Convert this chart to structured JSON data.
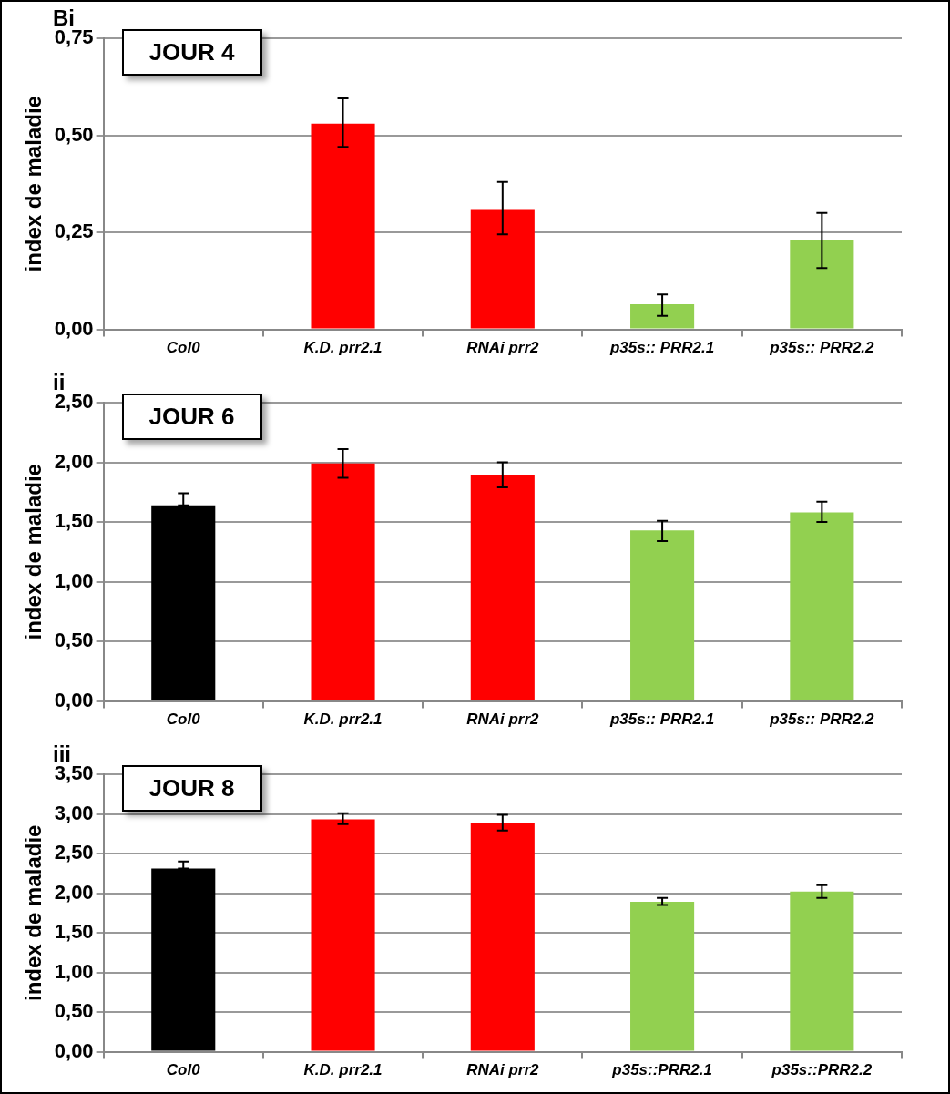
{
  "chart_data": [
    {
      "type": "bar",
      "title": "JOUR 4",
      "ylabel": "index de maladie",
      "annotations": [
        "Bi"
      ],
      "categories": [
        "Col0",
        "K.D. prr2.1",
        "RNAi prr2",
        "p35s:: PRR2.1",
        "p35s:: PRR2.2"
      ],
      "values": [
        0,
        0.53,
        0.31,
        0.065,
        0.23
      ],
      "colors": [
        "#000000",
        "#ff0000",
        "#ff0000",
        "#92d050",
        "#92d050"
      ],
      "errors": [
        null,
        [
          0.47,
          0.595
        ],
        [
          0.245,
          0.38
        ],
        [
          0.035,
          0.09
        ],
        [
          0.158,
          0.3
        ]
      ],
      "ylim": [
        0,
        0.75
      ],
      "yticks": [
        {
          "value": 0,
          "label": "0,00"
        },
        {
          "value": 0.25,
          "label": "0,25"
        },
        {
          "value": 0.5,
          "label": "0,50"
        },
        {
          "value": 0.75,
          "label": "0,75"
        }
      ],
      "grid": "y",
      "legend": false
    },
    {
      "type": "bar",
      "title": "JOUR 6",
      "ylabel": "index de maladie",
      "annotations": [
        "ii"
      ],
      "categories": [
        "Col0",
        "K.D. prr2.1",
        "RNAi prr2",
        "p35s:: PRR2.1",
        "p35s:: PRR2.2"
      ],
      "values": [
        1.64,
        1.99,
        1.89,
        1.43,
        1.58
      ],
      "colors": [
        "#000000",
        "#ff0000",
        "#ff0000",
        "#92d050",
        "#92d050"
      ],
      "errors": [
        [
          1.64,
          1.74
        ],
        [
          1.87,
          2.11
        ],
        [
          1.79,
          2.0
        ],
        [
          1.34,
          1.51
        ],
        [
          1.5,
          1.67
        ]
      ],
      "ylim": [
        0,
        2.5
      ],
      "yticks": [
        {
          "value": 0,
          "label": "0,00"
        },
        {
          "value": 0.5,
          "label": "0,50"
        },
        {
          "value": 1,
          "label": "1,00"
        },
        {
          "value": 1.5,
          "label": "1,50"
        },
        {
          "value": 2,
          "label": "2,00"
        },
        {
          "value": 2.5,
          "label": "2,50"
        }
      ],
      "grid": "y",
      "legend": false
    },
    {
      "type": "bar",
      "title": "JOUR 8",
      "ylabel": "index de maladie",
      "annotations": [
        "iii"
      ],
      "categories": [
        "Col0",
        "K.D. prr2.1",
        "RNAi prr2",
        "p35s::PRR2.1",
        "p35s::PRR2.2"
      ],
      "values": [
        2.31,
        2.93,
        2.89,
        1.89,
        2.02
      ],
      "colors": [
        "#000000",
        "#ff0000",
        "#ff0000",
        "#92d050",
        "#92d050"
      ],
      "errors": [
        [
          2.31,
          2.4
        ],
        [
          2.87,
          3.01
        ],
        [
          2.79,
          2.99
        ],
        [
          1.85,
          1.94
        ],
        [
          1.94,
          2.1
        ]
      ],
      "ylim": [
        0,
        3.5
      ],
      "yticks": [
        {
          "value": 0,
          "label": "0,00"
        },
        {
          "value": 0.5,
          "label": "0,50"
        },
        {
          "value": 1,
          "label": "1,00"
        },
        {
          "value": 1.5,
          "label": "1,50"
        },
        {
          "value": 2,
          "label": "2,00"
        },
        {
          "value": 2.5,
          "label": "2,50"
        },
        {
          "value": 3,
          "label": "3,00"
        },
        {
          "value": 3.5,
          "label": "3,50"
        }
      ],
      "grid": "y",
      "legend": false
    }
  ]
}
